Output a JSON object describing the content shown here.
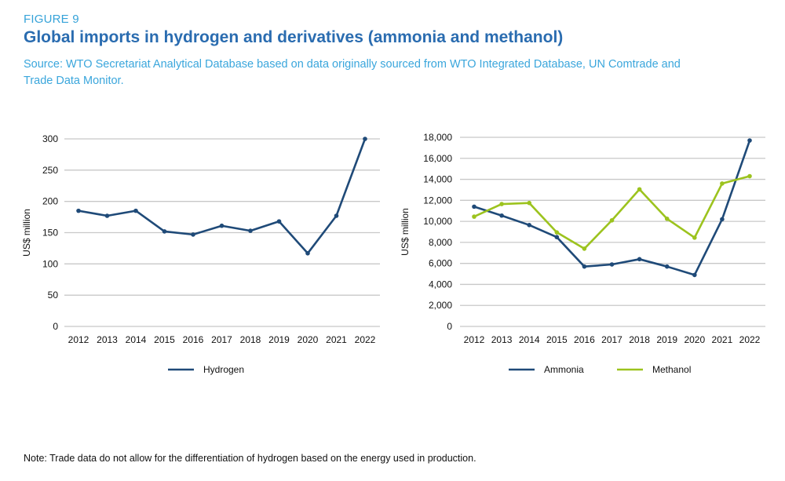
{
  "header": {
    "figure_label": "FIGURE 9",
    "title": "Global imports in hydrogen and derivatives (ammonia and methanol)",
    "source": "Source: WTO Secretariat Analytical Database based on data originally sourced from WTO Integrated Database, UN Comtrade and Trade Data Monitor."
  },
  "note": "Note: Trade data do not allow for the differentiation of hydrogen based on the energy used in production.",
  "colors": {
    "navy": "#1f4a78",
    "green": "#9cc31e",
    "grid": "#c8c8c8"
  },
  "chart_data": [
    {
      "type": "line",
      "title": "",
      "xlabel": "",
      "ylabel": "US$ million",
      "x": [
        "2012",
        "2013",
        "2014",
        "2015",
        "2016",
        "2017",
        "2018",
        "2019",
        "2020",
        "2021",
        "2022"
      ],
      "ylim": [
        0,
        300
      ],
      "yticks": [
        0,
        50,
        100,
        150,
        200,
        250,
        300
      ],
      "ytick_labels": [
        "0",
        "50",
        "100",
        "150",
        "200",
        "250",
        "300"
      ],
      "grid": true,
      "legend_position": "bottom",
      "series": [
        {
          "name": "Hydrogen",
          "color": "#1f4a78",
          "values": [
            185,
            177,
            185,
            152,
            147,
            161,
            153,
            168,
            117,
            177,
            300
          ]
        }
      ]
    },
    {
      "type": "line",
      "title": "",
      "xlabel": "",
      "ylabel": "US$ million",
      "x": [
        "2012",
        "2013",
        "2014",
        "2015",
        "2016",
        "2017",
        "2018",
        "2019",
        "2020",
        "2021",
        "2022"
      ],
      "ylim": [
        0,
        18000
      ],
      "yticks": [
        0,
        2000,
        4000,
        6000,
        8000,
        10000,
        12000,
        14000,
        16000,
        18000
      ],
      "ytick_labels": [
        "0",
        "2,000",
        "4,000",
        "6,000",
        "8,000",
        "10,000",
        "12,000",
        "14,000",
        "16,000",
        "18,000"
      ],
      "grid": true,
      "legend_position": "bottom",
      "series": [
        {
          "name": "Ammonia",
          "color": "#1f4a78",
          "values": [
            11400,
            10550,
            9650,
            8500,
            5700,
            5900,
            6400,
            5700,
            4900,
            10200,
            17700
          ]
        },
        {
          "name": "Methanol",
          "color": "#9cc31e",
          "values": [
            10450,
            11650,
            11750,
            8950,
            7400,
            10100,
            13050,
            10250,
            8450,
            13600,
            14300
          ]
        }
      ]
    }
  ]
}
